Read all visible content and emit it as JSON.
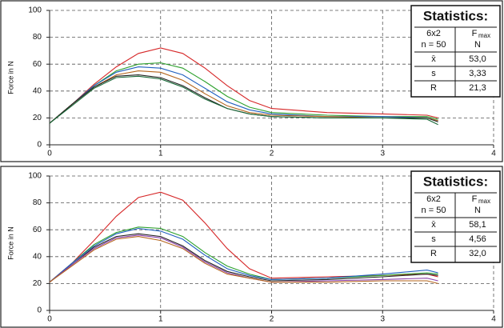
{
  "chart_data": [
    {
      "type": "line",
      "ylabel": "Force in N",
      "x": [
        0,
        0.2,
        0.4,
        0.6,
        0.8,
        1.0,
        1.2,
        1.4,
        1.6,
        1.8,
        2.0,
        2.5,
        3.0,
        3.4,
        3.5
      ],
      "series": [
        {
          "color": "#d62728",
          "values": [
            16,
            30,
            45,
            58,
            68,
            72,
            68,
            57,
            44,
            33,
            27,
            24,
            23,
            22,
            20
          ]
        },
        {
          "color": "#2ca02c",
          "values": [
            16,
            30,
            44,
            55,
            60,
            61,
            57,
            47,
            36,
            28,
            24,
            22,
            21,
            21,
            19
          ]
        },
        {
          "color": "#1f5fbf",
          "values": [
            16,
            30,
            44,
            54,
            58,
            57,
            52,
            42,
            32,
            26,
            23,
            21,
            21,
            20,
            18
          ]
        },
        {
          "color": "#b5651d",
          "values": [
            16,
            30,
            43,
            52,
            55,
            54,
            48,
            38,
            29,
            24,
            22,
            21,
            20,
            20,
            18
          ]
        },
        {
          "color": "#222222",
          "values": [
            16,
            30,
            43,
            51,
            52,
            50,
            44,
            35,
            27,
            23,
            21,
            20,
            20,
            20,
            17
          ]
        },
        {
          "color": "#1b6b3a",
          "values": [
            16,
            29,
            42,
            50,
            51,
            49,
            43,
            34,
            27,
            23,
            21,
            20,
            20,
            19,
            15
          ]
        }
      ],
      "xlim": [
        0,
        4
      ],
      "xticks": [
        0,
        1,
        2,
        3,
        4
      ],
      "ylim": [
        0,
        100
      ],
      "yticks": [
        0,
        20,
        40,
        60,
        80,
        100
      ],
      "grid": true,
      "stats": {
        "title": "Statistics:",
        "subscript": "max",
        "rows": [
          [
            "6x2",
            "F"
          ],
          [
            "n = 50",
            "N"
          ],
          [
            "x̄",
            "53,0"
          ],
          [
            "s",
            "3,33"
          ],
          [
            "R",
            "21,3"
          ]
        ]
      }
    },
    {
      "type": "line",
      "ylabel": "Force in N",
      "x": [
        0,
        0.2,
        0.4,
        0.6,
        0.8,
        1.0,
        1.2,
        1.4,
        1.6,
        1.8,
        2.0,
        2.5,
        3.0,
        3.4,
        3.5
      ],
      "series": [
        {
          "color": "#d62728",
          "values": [
            21,
            35,
            52,
            70,
            84,
            88,
            82,
            65,
            46,
            31,
            24,
            25,
            26,
            27,
            25
          ]
        },
        {
          "color": "#2ca02c",
          "values": [
            21,
            35,
            49,
            58,
            62,
            61,
            55,
            43,
            33,
            27,
            23,
            24,
            26,
            28,
            27
          ]
        },
        {
          "color": "#1f5fbf",
          "values": [
            21,
            35,
            48,
            57,
            61,
            59,
            53,
            41,
            31,
            26,
            23,
            24,
            27,
            30,
            28
          ]
        },
        {
          "color": "#222222",
          "values": [
            21,
            34,
            47,
            55,
            57,
            55,
            48,
            37,
            29,
            25,
            22,
            23,
            25,
            27,
            26
          ]
        },
        {
          "color": "#8e44ad",
          "values": [
            21,
            34,
            46,
            54,
            56,
            54,
            47,
            36,
            28,
            24,
            21,
            22,
            23,
            24,
            22
          ]
        },
        {
          "color": "#b5651d",
          "values": [
            21,
            33,
            45,
            53,
            55,
            52,
            46,
            35,
            27,
            24,
            21,
            21,
            22,
            22,
            20
          ]
        }
      ],
      "xlim": [
        0,
        4
      ],
      "xticks": [
        0,
        1,
        2,
        3,
        4
      ],
      "ylim": [
        0,
        100
      ],
      "yticks": [
        0,
        20,
        40,
        60,
        80,
        100
      ],
      "grid": true,
      "stats": {
        "title": "Statistics:",
        "subscript": "max",
        "rows": [
          [
            "6x2",
            "F"
          ],
          [
            "n = 50",
            "N"
          ],
          [
            "x̄",
            "58,1"
          ],
          [
            "s",
            "4,56"
          ],
          [
            "R",
            "32,0"
          ]
        ]
      }
    }
  ]
}
